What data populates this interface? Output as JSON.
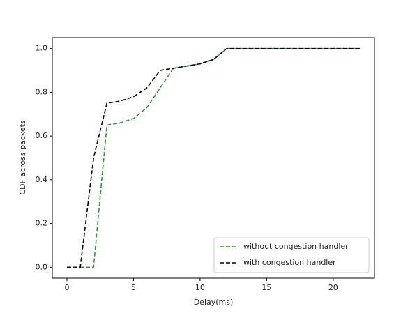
{
  "chart_data": {
    "type": "line",
    "xlabel": "Delay(ms)",
    "ylabel": "CDF across packets",
    "x": [
      0,
      1,
      2,
      3,
      4,
      5,
      6,
      7,
      8,
      9,
      10,
      11,
      12,
      22
    ],
    "series": [
      {
        "name": "without congestion handler",
        "color": "#2ca02c",
        "values": [
          0,
          0,
          0,
          0.65,
          0.66,
          0.68,
          0.73,
          0.82,
          0.91,
          0.92,
          0.93,
          0.95,
          1.0,
          1.0
        ]
      },
      {
        "name": "with congestion handler",
        "color": "#000000",
        "values": [
          0,
          0,
          0.5,
          0.75,
          0.76,
          0.78,
          0.82,
          0.9,
          0.91,
          0.92,
          0.93,
          0.95,
          1.0,
          1.0
        ]
      }
    ],
    "xlim": [
      -1.1,
      23.1
    ],
    "xticks": [
      0,
      5,
      10,
      15,
      20
    ],
    "ylim": [
      -0.05,
      1.05
    ],
    "yticks": [
      {
        "value": 0,
        "label": "0.0"
      },
      {
        "value": 0.2,
        "label": "0.2"
      },
      {
        "value": 0.4,
        "label": "0.4"
      },
      {
        "value": 0.6,
        "label": "0.6"
      },
      {
        "value": 0.8,
        "label": "0.8"
      },
      {
        "value": 1.0,
        "label": "1.0"
      }
    ],
    "legend": "lower right"
  }
}
